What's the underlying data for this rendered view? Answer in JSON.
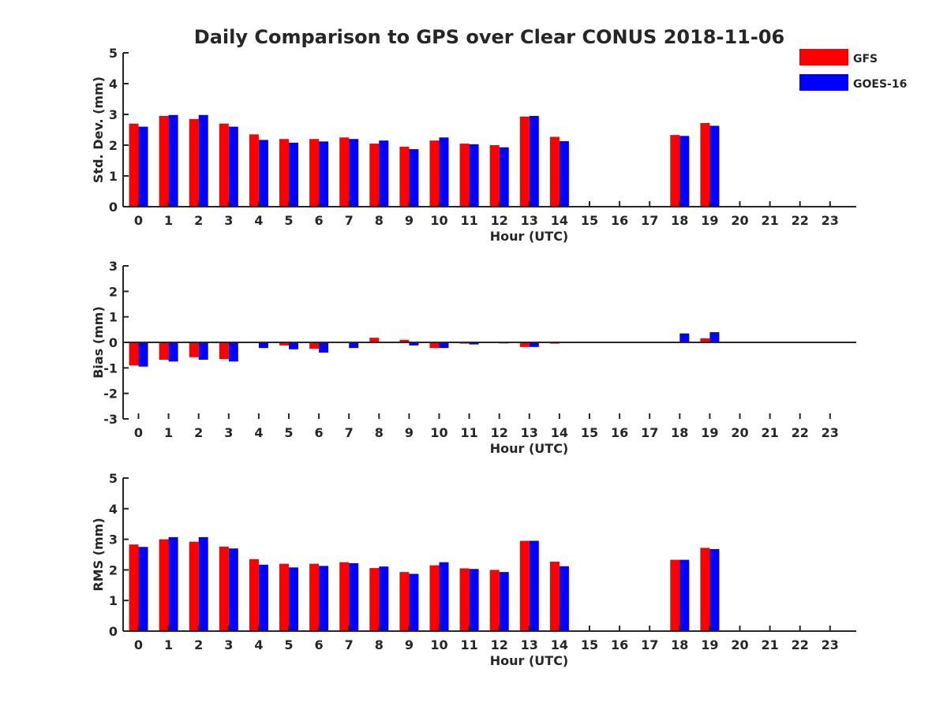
{
  "chart_data": {
    "title": "Daily Comparison to GPS over Clear CONUS 2018-11-06",
    "type": "bar",
    "categories": [
      "0",
      "1",
      "2",
      "3",
      "4",
      "5",
      "6",
      "7",
      "8",
      "9",
      "10",
      "11",
      "12",
      "13",
      "14",
      "15",
      "16",
      "17",
      "18",
      "19",
      "20",
      "21",
      "22",
      "23"
    ],
    "legend": {
      "placement": "top-right",
      "entries": [
        {
          "name": "GFS",
          "color": "#ff0000"
        },
        {
          "name": "GOES-16",
          "color": "#0000ff"
        }
      ]
    },
    "panels": [
      {
        "ylabel": "Std. Dev. (mm)",
        "xlabel": "Hour (UTC)",
        "ylim": [
          0,
          5
        ],
        "yticks": [
          "0",
          "1",
          "2",
          "3",
          "4",
          "5"
        ],
        "series": [
          {
            "name": "GFS",
            "color": "#ff0000",
            "values": [
              2.7,
              2.95,
              2.85,
              2.7,
              2.35,
              2.2,
              2.2,
              2.25,
              2.05,
              1.95,
              2.15,
              2.05,
              2.0,
              2.93,
              2.27,
              null,
              null,
              null,
              2.33,
              2.72,
              null,
              null,
              null,
              null
            ]
          },
          {
            "name": "GOES-16",
            "color": "#0000ff",
            "values": [
              2.6,
              2.98,
              2.98,
              2.6,
              2.17,
              2.08,
              2.12,
              2.2,
              2.15,
              1.87,
              2.25,
              2.03,
              1.93,
              2.95,
              2.13,
              null,
              null,
              null,
              2.3,
              2.63,
              null,
              null,
              null,
              null
            ]
          }
        ]
      },
      {
        "ylabel": "Bias (mm)",
        "xlabel": "Hour (UTC)",
        "ylim": [
          -3,
          3
        ],
        "yticks": [
          "-3",
          "-2",
          "-1",
          "0",
          "1",
          "2",
          "3"
        ],
        "series": [
          {
            "name": "GFS",
            "color": "#ff0000",
            "values": [
              -0.9,
              -0.68,
              -0.58,
              -0.65,
              -0.02,
              -0.12,
              -0.25,
              -0.03,
              0.18,
              0.1,
              -0.22,
              -0.05,
              -0.03,
              -0.18,
              -0.05,
              null,
              null,
              null,
              0.0,
              0.16,
              null,
              null,
              null,
              null
            ]
          },
          {
            "name": "GOES-16",
            "color": "#0000ff",
            "values": [
              -0.95,
              -0.75,
              -0.68,
              -0.75,
              -0.22,
              -0.27,
              -0.4,
              -0.22,
              -0.02,
              -0.12,
              -0.22,
              -0.08,
              -0.04,
              -0.18,
              -0.02,
              null,
              null,
              null,
              0.35,
              0.4,
              null,
              null,
              null,
              null
            ]
          }
        ]
      },
      {
        "ylabel": "RMS (mm)",
        "xlabel": "Hour (UTC)",
        "ylim": [
          0,
          5
        ],
        "yticks": [
          "0",
          "1",
          "2",
          "3",
          "4",
          "5"
        ],
        "series": [
          {
            "name": "GFS",
            "color": "#ff0000",
            "values": [
              2.83,
              3.0,
              2.92,
              2.76,
              2.35,
              2.2,
              2.2,
              2.25,
              2.06,
              1.93,
              2.15,
              2.05,
              2.0,
              2.95,
              2.27,
              null,
              null,
              null,
              2.33,
              2.72,
              null,
              null,
              null,
              null
            ]
          },
          {
            "name": "GOES-16",
            "color": "#0000ff",
            "values": [
              2.75,
              3.07,
              3.07,
              2.7,
              2.17,
              2.08,
              2.13,
              2.22,
              2.11,
              1.87,
              2.25,
              2.03,
              1.93,
              2.95,
              2.12,
              null,
              null,
              null,
              2.33,
              2.68,
              null,
              null,
              null,
              null
            ]
          }
        ]
      }
    ]
  }
}
